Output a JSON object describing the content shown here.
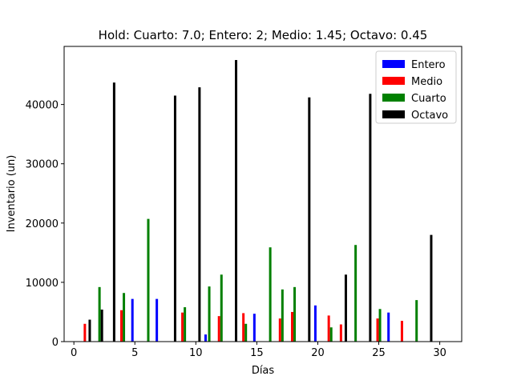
{
  "chart_data": {
    "type": "bar",
    "title": "Hold: Cuarto: 7.0; Entero: 2; Medio: 1.45; Octavo: 0.45",
    "xlabel": "Días",
    "ylabel": "Inventario (un)",
    "xlim": [
      -0.8,
      31.8
    ],
    "ylim": [
      0,
      49800
    ],
    "xticks": [
      0,
      5,
      10,
      15,
      20,
      25,
      30
    ],
    "yticks": [
      0,
      10000,
      20000,
      30000,
      40000
    ],
    "grid": false,
    "legend_position": "upper right",
    "series": [
      {
        "name": "Entero",
        "color": "#0000ff",
        "points": [
          [
            4.8,
            7200
          ],
          [
            6.8,
            7200
          ],
          [
            10.8,
            1200
          ],
          [
            14.8,
            4700
          ],
          [
            19.8,
            6100
          ],
          [
            25.8,
            4900
          ]
        ]
      },
      {
        "name": "Medio",
        "color": "#ff0000",
        "points": [
          [
            0.9,
            3000
          ],
          [
            3.9,
            5300
          ],
          [
            8.9,
            4900
          ],
          [
            11.9,
            4300
          ],
          [
            13.9,
            4800
          ],
          [
            16.9,
            3900
          ],
          [
            17.9,
            5000
          ],
          [
            20.9,
            4400
          ],
          [
            21.9,
            2900
          ],
          [
            24.9,
            3900
          ],
          [
            26.9,
            3500
          ]
        ]
      },
      {
        "name": "Cuarto",
        "color": "#008000",
        "points": [
          [
            2.1,
            9200
          ],
          [
            4.1,
            8200
          ],
          [
            6.1,
            20700
          ],
          [
            9.1,
            5800
          ],
          [
            11.1,
            9300
          ],
          [
            12.1,
            11300
          ],
          [
            14.1,
            3000
          ],
          [
            16.1,
            15900
          ],
          [
            17.1,
            8800
          ],
          [
            18.1,
            9200
          ],
          [
            21.1,
            2400
          ],
          [
            23.1,
            16300
          ],
          [
            25.1,
            5500
          ],
          [
            28.1,
            7000
          ]
        ]
      },
      {
        "name": "Octavo",
        "color": "#000000",
        "points": [
          [
            1.3,
            3700
          ],
          [
            2.3,
            5400
          ],
          [
            3.3,
            43700
          ],
          [
            8.3,
            41500
          ],
          [
            10.3,
            42900
          ],
          [
            13.3,
            47500
          ],
          [
            19.3,
            41200
          ],
          [
            22.3,
            11300
          ],
          [
            24.3,
            41800
          ],
          [
            29.3,
            18000
          ]
        ]
      }
    ]
  }
}
